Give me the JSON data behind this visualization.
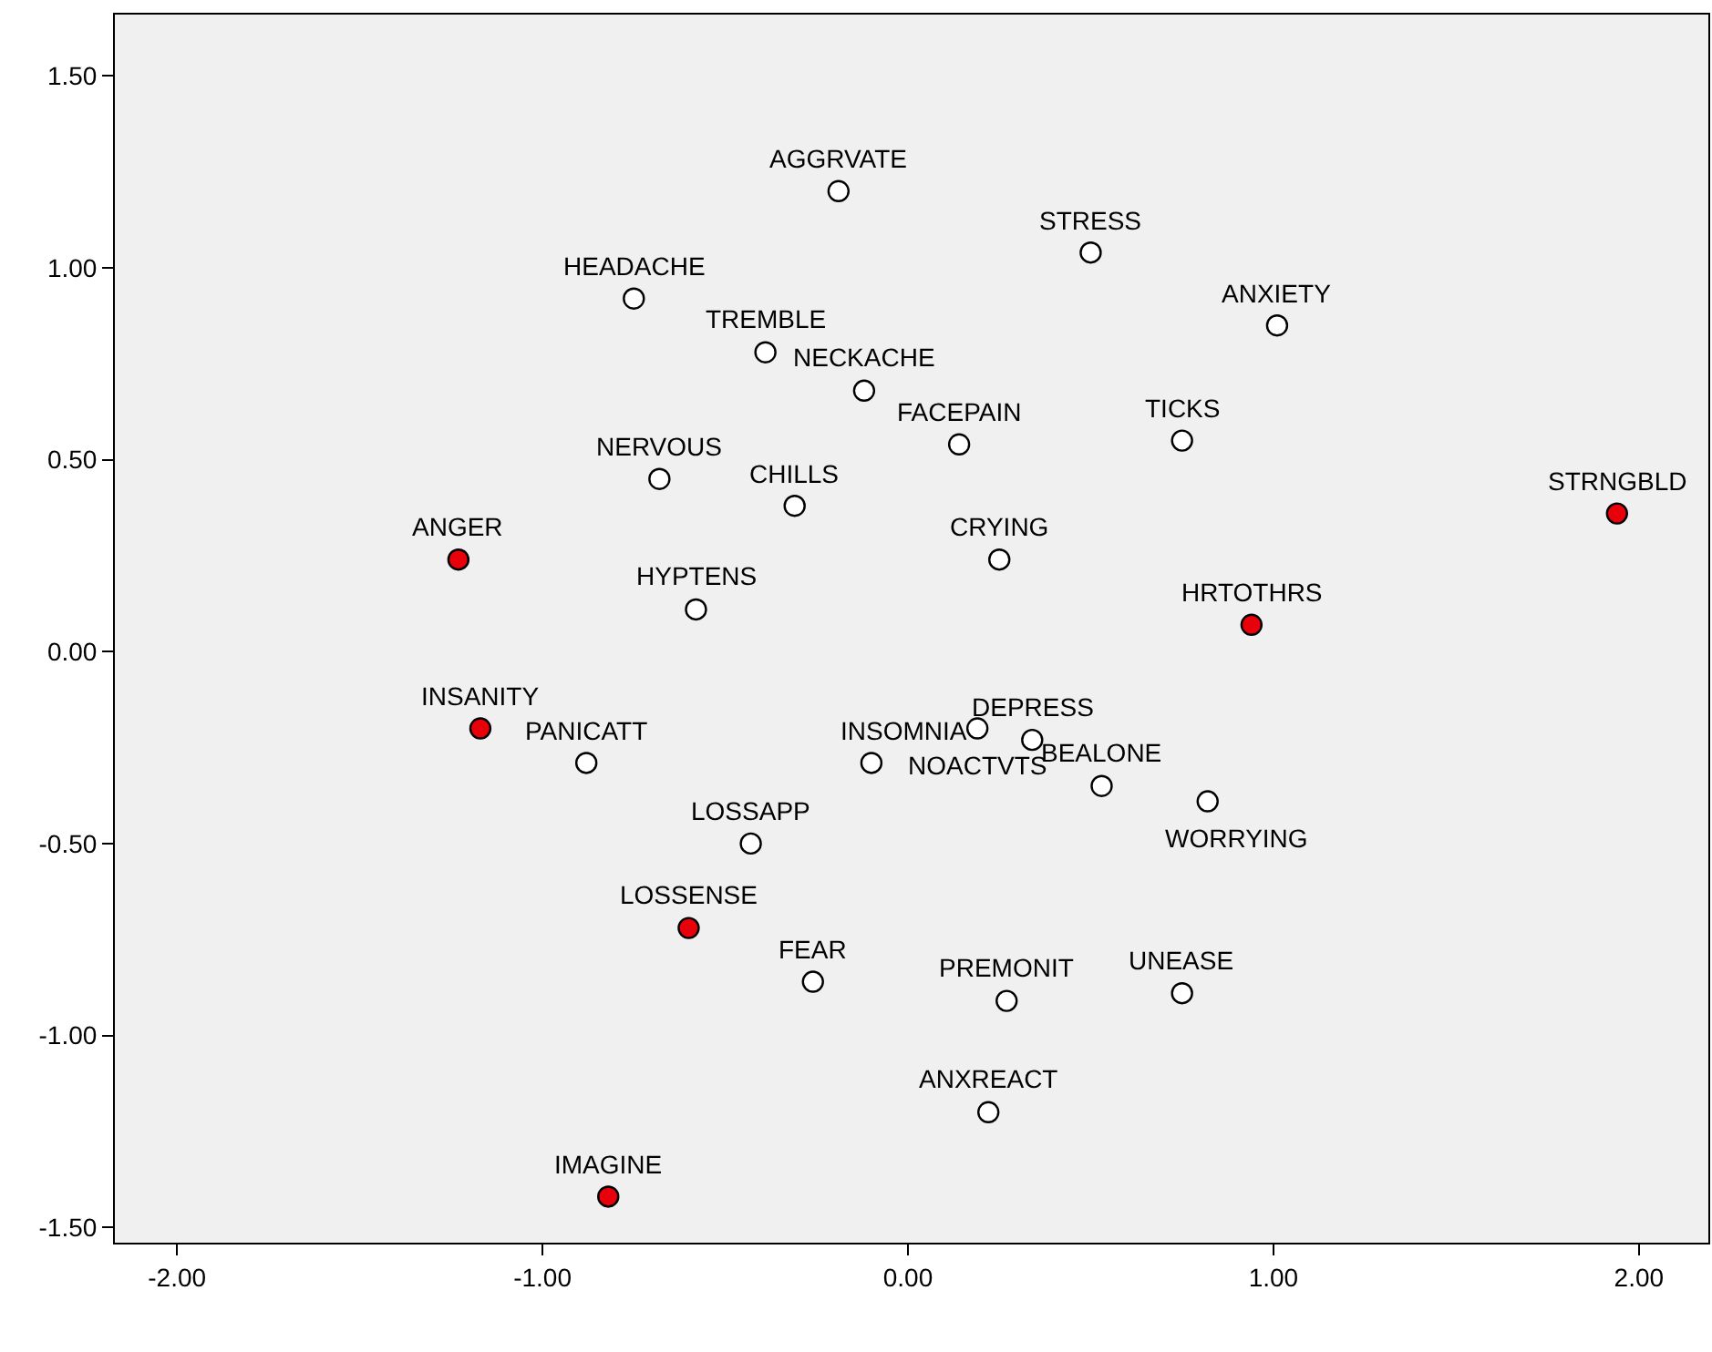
{
  "chart_data": {
    "type": "scatter",
    "x": [
      -0.19,
      0.5,
      -0.75,
      -0.39,
      1.01,
      -0.12,
      0.14,
      0.75,
      -0.68,
      -0.31,
      1.94,
      -1.23,
      0.25,
      0.94,
      -0.58,
      -1.17,
      -0.88,
      -0.1,
      0.19,
      0.34,
      0.53,
      0.82,
      -0.43,
      -0.6,
      -0.26,
      0.27,
      0.75,
      0.22,
      -0.82
    ],
    "values": [
      1.2,
      1.04,
      0.92,
      0.78,
      0.85,
      0.68,
      0.54,
      0.55,
      0.45,
      0.38,
      0.36,
      0.24,
      0.24,
      0.07,
      0.11,
      -0.2,
      -0.29,
      -0.29,
      -0.2,
      -0.23,
      -0.35,
      -0.39,
      -0.5,
      -0.72,
      -0.86,
      -0.91,
      -0.89,
      -1.2,
      -1.42
    ],
    "colors": [
      "#ffffff",
      "#ffffff",
      "#ffffff",
      "#ffffff",
      "#ffffff",
      "#ffffff",
      "#ffffff",
      "#ffffff",
      "#ffffff",
      "#ffffff",
      "#e8000b",
      "#e8000b",
      "#ffffff",
      "#e8000b",
      "#ffffff",
      "#e8000b",
      "#ffffff",
      "#ffffff",
      "#ffffff",
      "#ffffff",
      "#ffffff",
      "#ffffff",
      "#ffffff",
      "#e8000b",
      "#ffffff",
      "#ffffff",
      "#ffffff",
      "#ffffff",
      "#e8000b"
    ],
    "annotations": [
      {
        "text": "AGGRVATE",
        "x": -0.19,
        "y": 1.2
      },
      {
        "text": "STRESS",
        "x": 0.5,
        "y": 1.04
      },
      {
        "text": "HEADACHE",
        "x": -0.75,
        "y": 0.92
      },
      {
        "text": "TREMBLE",
        "x": -0.39,
        "y": 0.78
      },
      {
        "text": "ANXIETY",
        "x": 1.01,
        "y": 0.85
      },
      {
        "text": "NECKACHE",
        "x": -0.12,
        "y": 0.68
      },
      {
        "text": "FACEPAIN",
        "x": 0.14,
        "y": 0.54
      },
      {
        "text": "TICKS",
        "x": 0.75,
        "y": 0.55
      },
      {
        "text": "NERVOUS",
        "x": -0.68,
        "y": 0.45
      },
      {
        "text": "CHILLS",
        "x": -0.31,
        "y": 0.38
      },
      {
        "text": "STRNGBLD",
        "x": 1.94,
        "y": 0.36
      },
      {
        "text": "ANGER",
        "x": -1.23,
        "y": 0.24
      },
      {
        "text": "CRYING",
        "x": 0.25,
        "y": 0.24
      },
      {
        "text": "HRTOTHRS",
        "x": 0.94,
        "y": 0.07
      },
      {
        "text": "HYPTENS",
        "x": -0.58,
        "y": 0.11
      },
      {
        "text": "INSANITY",
        "x": -1.17,
        "y": -0.2
      },
      {
        "text": "PANICATT",
        "x": -0.88,
        "y": -0.29
      },
      {
        "text": "INSOMNIA",
        "x": -0.1,
        "y": -0.29
      },
      {
        "text": "NOACTVTS",
        "x": 0.19,
        "y": -0.2
      },
      {
        "text": "DEPRESS",
        "x": 0.34,
        "y": -0.23
      },
      {
        "text": "BEALONE",
        "x": 0.53,
        "y": -0.35
      },
      {
        "text": "WORRYING",
        "x": 0.82,
        "y": -0.39
      },
      {
        "text": "LOSSAPP",
        "x": -0.43,
        "y": -0.5
      },
      {
        "text": "LOSSENSE",
        "x": -0.6,
        "y": -0.72
      },
      {
        "text": "FEAR",
        "x": -0.26,
        "y": -0.86
      },
      {
        "text": "PREMONIT",
        "x": 0.27,
        "y": -0.91
      },
      {
        "text": "UNEASE",
        "x": 0.75,
        "y": -0.89
      },
      {
        "text": "ANXREACT",
        "x": 0.22,
        "y": -1.2
      },
      {
        "text": "IMAGINE",
        "x": -0.82,
        "y": -1.42
      }
    ],
    "xlim": [
      -2.17,
      2.19
    ],
    "ylim": [
      -1.54,
      1.66
    ],
    "xticks": [
      {
        "value": -2,
        "label": "-2.00"
      },
      {
        "value": -1,
        "label": "-1.00"
      },
      {
        "value": 0,
        "label": "0.00"
      },
      {
        "value": 1,
        "label": "1.00"
      },
      {
        "value": 2,
        "label": "2.00"
      }
    ],
    "yticks": [
      {
        "value": -1.5,
        "label": "-1.50"
      },
      {
        "value": -1,
        "label": "-1.00"
      },
      {
        "value": -0.5,
        "label": "-0.50"
      },
      {
        "value": 0,
        "label": "0.00"
      },
      {
        "value": 0.5,
        "label": "0.50"
      },
      {
        "value": 1,
        "label": "1.00"
      },
      {
        "value": 1.5,
        "label": "1.50"
      }
    ],
    "marker": "circle",
    "grid": false
  }
}
